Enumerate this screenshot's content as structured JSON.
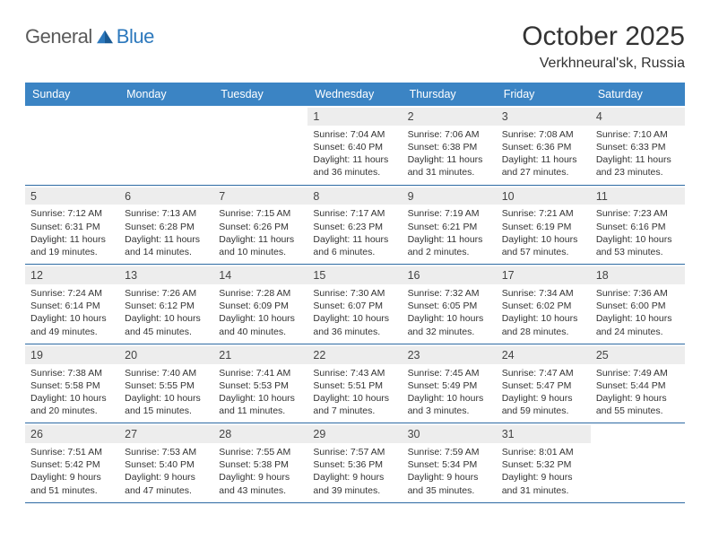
{
  "brand": {
    "text1": "General",
    "text2": "Blue"
  },
  "title": "October 2025",
  "location": "Verkhneural'sk, Russia",
  "colors": {
    "header_bg": "#3b84c4",
    "header_text": "#ffffff",
    "week_border": "#2d6aa3",
    "daynum_bg": "#ededed",
    "text": "#333333",
    "logo_gray": "#5a5a5a",
    "logo_blue": "#2d79bd",
    "page_bg": "#ffffff"
  },
  "typography": {
    "title_fontsize": 30,
    "location_fontsize": 16,
    "dayheader_fontsize": 12.5,
    "daynum_fontsize": 12.5,
    "body_fontsize": 10.5,
    "logo_fontsize": 22
  },
  "layout": {
    "cols": 7,
    "rows": 5,
    "cell_min_height": 84
  },
  "day_names": [
    "Sunday",
    "Monday",
    "Tuesday",
    "Wednesday",
    "Thursday",
    "Friday",
    "Saturday"
  ],
  "weeks": [
    [
      {
        "n": "",
        "sunrise": "",
        "sunset": "",
        "daylight": ""
      },
      {
        "n": "",
        "sunrise": "",
        "sunset": "",
        "daylight": ""
      },
      {
        "n": "",
        "sunrise": "",
        "sunset": "",
        "daylight": ""
      },
      {
        "n": "1",
        "sunrise": "Sunrise: 7:04 AM",
        "sunset": "Sunset: 6:40 PM",
        "daylight": "Daylight: 11 hours and 36 minutes."
      },
      {
        "n": "2",
        "sunrise": "Sunrise: 7:06 AM",
        "sunset": "Sunset: 6:38 PM",
        "daylight": "Daylight: 11 hours and 31 minutes."
      },
      {
        "n": "3",
        "sunrise": "Sunrise: 7:08 AM",
        "sunset": "Sunset: 6:36 PM",
        "daylight": "Daylight: 11 hours and 27 minutes."
      },
      {
        "n": "4",
        "sunrise": "Sunrise: 7:10 AM",
        "sunset": "Sunset: 6:33 PM",
        "daylight": "Daylight: 11 hours and 23 minutes."
      }
    ],
    [
      {
        "n": "5",
        "sunrise": "Sunrise: 7:12 AM",
        "sunset": "Sunset: 6:31 PM",
        "daylight": "Daylight: 11 hours and 19 minutes."
      },
      {
        "n": "6",
        "sunrise": "Sunrise: 7:13 AM",
        "sunset": "Sunset: 6:28 PM",
        "daylight": "Daylight: 11 hours and 14 minutes."
      },
      {
        "n": "7",
        "sunrise": "Sunrise: 7:15 AM",
        "sunset": "Sunset: 6:26 PM",
        "daylight": "Daylight: 11 hours and 10 minutes."
      },
      {
        "n": "8",
        "sunrise": "Sunrise: 7:17 AM",
        "sunset": "Sunset: 6:23 PM",
        "daylight": "Daylight: 11 hours and 6 minutes."
      },
      {
        "n": "9",
        "sunrise": "Sunrise: 7:19 AM",
        "sunset": "Sunset: 6:21 PM",
        "daylight": "Daylight: 11 hours and 2 minutes."
      },
      {
        "n": "10",
        "sunrise": "Sunrise: 7:21 AM",
        "sunset": "Sunset: 6:19 PM",
        "daylight": "Daylight: 10 hours and 57 minutes."
      },
      {
        "n": "11",
        "sunrise": "Sunrise: 7:23 AM",
        "sunset": "Sunset: 6:16 PM",
        "daylight": "Daylight: 10 hours and 53 minutes."
      }
    ],
    [
      {
        "n": "12",
        "sunrise": "Sunrise: 7:24 AM",
        "sunset": "Sunset: 6:14 PM",
        "daylight": "Daylight: 10 hours and 49 minutes."
      },
      {
        "n": "13",
        "sunrise": "Sunrise: 7:26 AM",
        "sunset": "Sunset: 6:12 PM",
        "daylight": "Daylight: 10 hours and 45 minutes."
      },
      {
        "n": "14",
        "sunrise": "Sunrise: 7:28 AM",
        "sunset": "Sunset: 6:09 PM",
        "daylight": "Daylight: 10 hours and 40 minutes."
      },
      {
        "n": "15",
        "sunrise": "Sunrise: 7:30 AM",
        "sunset": "Sunset: 6:07 PM",
        "daylight": "Daylight: 10 hours and 36 minutes."
      },
      {
        "n": "16",
        "sunrise": "Sunrise: 7:32 AM",
        "sunset": "Sunset: 6:05 PM",
        "daylight": "Daylight: 10 hours and 32 minutes."
      },
      {
        "n": "17",
        "sunrise": "Sunrise: 7:34 AM",
        "sunset": "Sunset: 6:02 PM",
        "daylight": "Daylight: 10 hours and 28 minutes."
      },
      {
        "n": "18",
        "sunrise": "Sunrise: 7:36 AM",
        "sunset": "Sunset: 6:00 PM",
        "daylight": "Daylight: 10 hours and 24 minutes."
      }
    ],
    [
      {
        "n": "19",
        "sunrise": "Sunrise: 7:38 AM",
        "sunset": "Sunset: 5:58 PM",
        "daylight": "Daylight: 10 hours and 20 minutes."
      },
      {
        "n": "20",
        "sunrise": "Sunrise: 7:40 AM",
        "sunset": "Sunset: 5:55 PM",
        "daylight": "Daylight: 10 hours and 15 minutes."
      },
      {
        "n": "21",
        "sunrise": "Sunrise: 7:41 AM",
        "sunset": "Sunset: 5:53 PM",
        "daylight": "Daylight: 10 hours and 11 minutes."
      },
      {
        "n": "22",
        "sunrise": "Sunrise: 7:43 AM",
        "sunset": "Sunset: 5:51 PM",
        "daylight": "Daylight: 10 hours and 7 minutes."
      },
      {
        "n": "23",
        "sunrise": "Sunrise: 7:45 AM",
        "sunset": "Sunset: 5:49 PM",
        "daylight": "Daylight: 10 hours and 3 minutes."
      },
      {
        "n": "24",
        "sunrise": "Sunrise: 7:47 AM",
        "sunset": "Sunset: 5:47 PM",
        "daylight": "Daylight: 9 hours and 59 minutes."
      },
      {
        "n": "25",
        "sunrise": "Sunrise: 7:49 AM",
        "sunset": "Sunset: 5:44 PM",
        "daylight": "Daylight: 9 hours and 55 minutes."
      }
    ],
    [
      {
        "n": "26",
        "sunrise": "Sunrise: 7:51 AM",
        "sunset": "Sunset: 5:42 PM",
        "daylight": "Daylight: 9 hours and 51 minutes."
      },
      {
        "n": "27",
        "sunrise": "Sunrise: 7:53 AM",
        "sunset": "Sunset: 5:40 PM",
        "daylight": "Daylight: 9 hours and 47 minutes."
      },
      {
        "n": "28",
        "sunrise": "Sunrise: 7:55 AM",
        "sunset": "Sunset: 5:38 PM",
        "daylight": "Daylight: 9 hours and 43 minutes."
      },
      {
        "n": "29",
        "sunrise": "Sunrise: 7:57 AM",
        "sunset": "Sunset: 5:36 PM",
        "daylight": "Daylight: 9 hours and 39 minutes."
      },
      {
        "n": "30",
        "sunrise": "Sunrise: 7:59 AM",
        "sunset": "Sunset: 5:34 PM",
        "daylight": "Daylight: 9 hours and 35 minutes."
      },
      {
        "n": "31",
        "sunrise": "Sunrise: 8:01 AM",
        "sunset": "Sunset: 5:32 PM",
        "daylight": "Daylight: 9 hours and 31 minutes."
      },
      {
        "n": "",
        "sunrise": "",
        "sunset": "",
        "daylight": ""
      }
    ]
  ]
}
